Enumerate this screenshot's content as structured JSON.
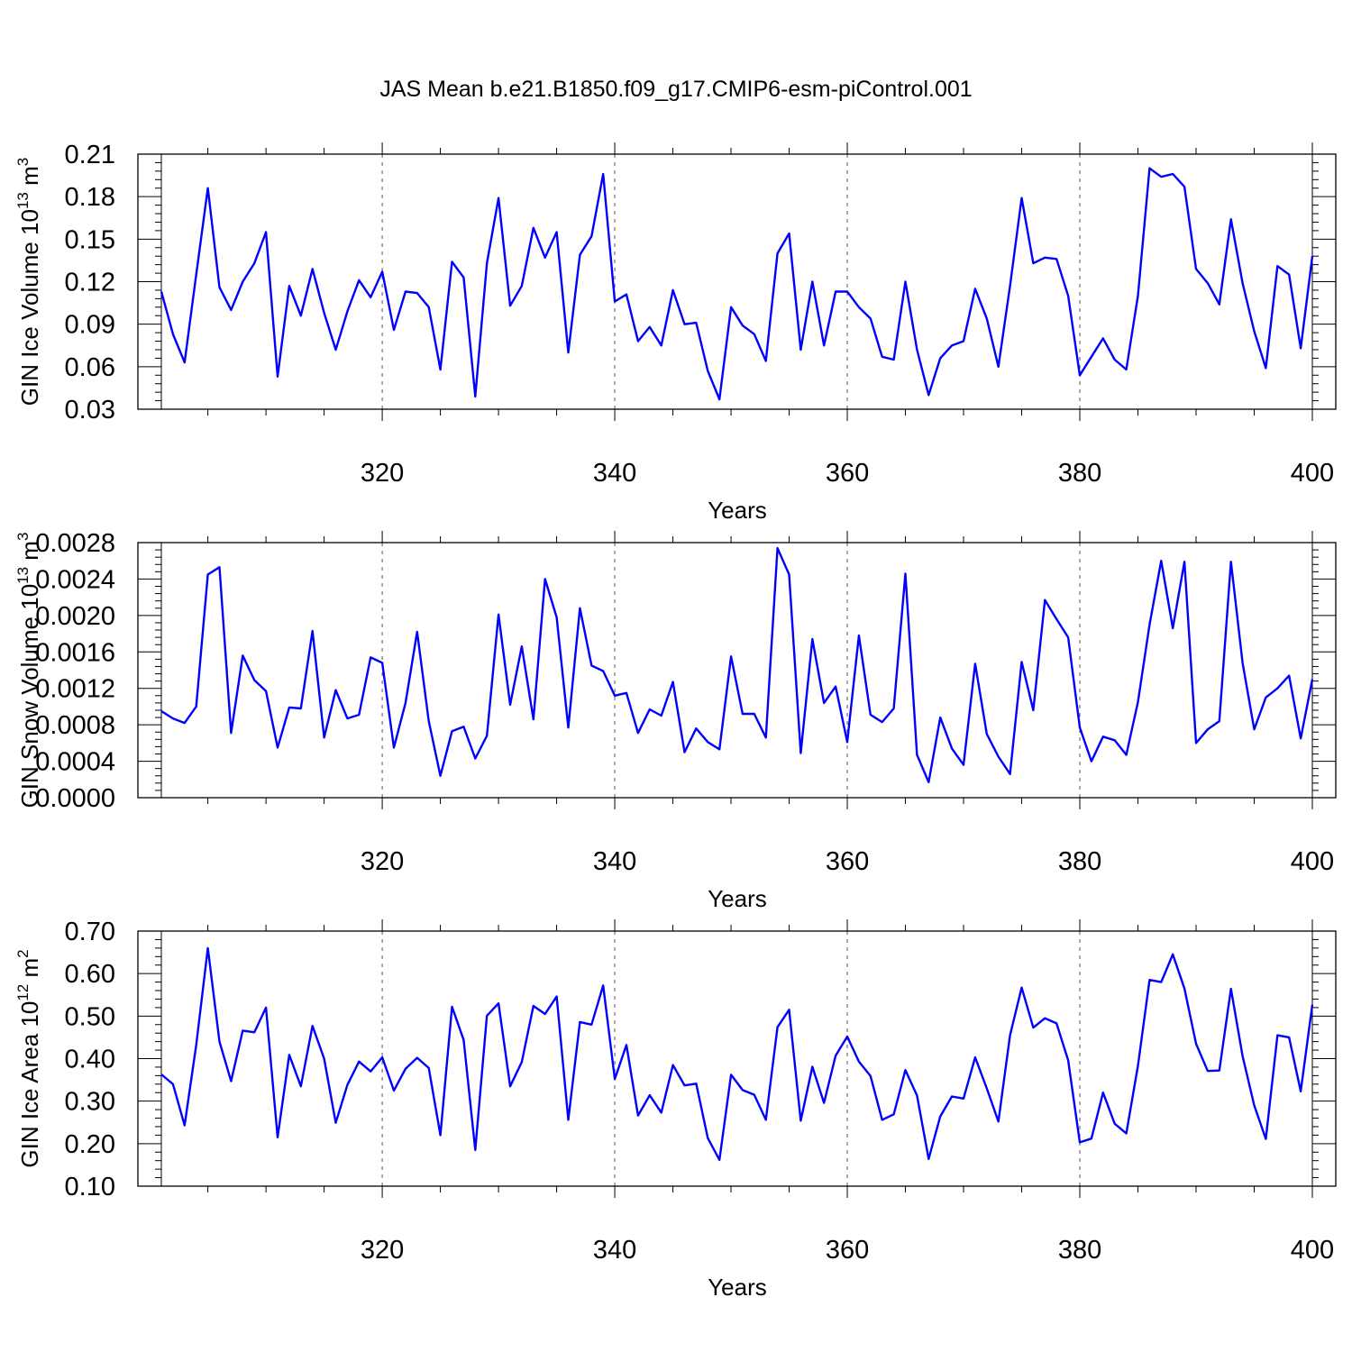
{
  "title": "JAS Mean b.e21.B1850.f09_g17.CMIP6-esm-piControl.001",
  "line_color": "#0000ff",
  "chart_data": [
    {
      "type": "line",
      "ylabel_parts": [
        "GIN Ice Volume 10",
        "13",
        " m",
        "3"
      ],
      "xlabel": "Years",
      "xlim": [
        301,
        400
      ],
      "ylim": [
        0.03,
        0.21
      ],
      "xticks": [
        320,
        340,
        360,
        380,
        400
      ],
      "yticks": [
        "0.03",
        "0.06",
        "0.09",
        "0.12",
        "0.15",
        "0.18",
        "0.21"
      ],
      "x_start": 301,
      "values": [
        0.113,
        0.083,
        0.063,
        0.125,
        0.186,
        0.116,
        0.1,
        0.12,
        0.133,
        0.155,
        0.053,
        0.117,
        0.096,
        0.129,
        0.098,
        0.072,
        0.099,
        0.121,
        0.109,
        0.127,
        0.086,
        0.113,
        0.112,
        0.102,
        0.058,
        0.134,
        0.123,
        0.039,
        0.133,
        0.179,
        0.103,
        0.117,
        0.158,
        0.137,
        0.155,
        0.07,
        0.139,
        0.152,
        0.196,
        0.106,
        0.111,
        0.078,
        0.088,
        0.075,
        0.114,
        0.09,
        0.091,
        0.057,
        0.037,
        0.102,
        0.089,
        0.083,
        0.064,
        0.14,
        0.154,
        0.072,
        0.12,
        0.075,
        0.113,
        0.113,
        0.102,
        0.094,
        0.067,
        0.065,
        0.12,
        0.072,
        0.04,
        0.066,
        0.075,
        0.078,
        0.115,
        0.094,
        0.06,
        0.117,
        0.179,
        0.133,
        0.137,
        0.136,
        0.11,
        0.054,
        0.067,
        0.08,
        0.065,
        0.058,
        0.11,
        0.2,
        0.194,
        0.196,
        0.187,
        0.129,
        0.119,
        0.104,
        0.164,
        0.119,
        0.085,
        0.059,
        0.131,
        0.125,
        0.073,
        0.138
      ]
    },
    {
      "type": "line",
      "ylabel_parts": [
        "GIN Snow Volume 10",
        "13",
        " m",
        "3"
      ],
      "xlabel": "Years",
      "xlim": [
        301,
        400
      ],
      "ylim": [
        0.0,
        0.0028
      ],
      "xticks": [
        320,
        340,
        360,
        380,
        400
      ],
      "yticks": [
        "0.0000",
        "0.0004",
        "0.0008",
        "0.0012",
        "0.0016",
        "0.0020",
        "0.0024",
        "0.0028"
      ],
      "x_start": 301,
      "values": [
        0.00095,
        0.00087,
        0.00082,
        0.001,
        0.00245,
        0.00253,
        0.00071,
        0.00156,
        0.00129,
        0.00117,
        0.00055,
        0.00099,
        0.00098,
        0.00183,
        0.00066,
        0.00118,
        0.00087,
        0.00091,
        0.00154,
        0.00148,
        0.00055,
        0.00104,
        0.00182,
        0.00084,
        0.00024,
        0.00073,
        0.00078,
        0.00043,
        0.00068,
        0.00201,
        0.00102,
        0.00166,
        0.00086,
        0.0024,
        0.00198,
        0.00077,
        0.00208,
        0.00145,
        0.00139,
        0.00112,
        0.00115,
        0.00071,
        0.00097,
        0.0009,
        0.00127,
        0.0005,
        0.00076,
        0.00061,
        0.00053,
        0.00155,
        0.00092,
        0.00092,
        0.00066,
        0.00274,
        0.00245,
        0.00049,
        0.00174,
        0.00104,
        0.00122,
        0.00061,
        0.00178,
        0.00091,
        0.00083,
        0.00098,
        0.00246,
        0.00047,
        0.00017,
        0.00088,
        0.00054,
        0.00036,
        0.00147,
        0.0007,
        0.00045,
        0.00026,
        0.00149,
        0.00096,
        0.00217,
        0.00196,
        0.00176,
        0.00077,
        0.0004,
        0.00067,
        0.00063,
        0.00047,
        0.00105,
        0.0019,
        0.0026,
        0.00186,
        0.00259,
        0.0006,
        0.00075,
        0.00084,
        0.00259,
        0.00148,
        0.00075,
        0.0011,
        0.0012,
        0.00134,
        0.00065,
        0.0013
      ]
    },
    {
      "type": "line",
      "ylabel_parts": [
        "GIN Ice Area 10",
        "12",
        " m",
        "2"
      ],
      "xlabel": "Years",
      "xlim": [
        301,
        400
      ],
      "ylim": [
        0.1,
        0.7
      ],
      "xticks": [
        320,
        340,
        360,
        380,
        400
      ],
      "yticks": [
        "0.10",
        "0.20",
        "0.30",
        "0.40",
        "0.50",
        "0.60",
        "0.70"
      ],
      "x_start": 301,
      "values": [
        0.363,
        0.34,
        0.243,
        0.432,
        0.66,
        0.44,
        0.347,
        0.466,
        0.462,
        0.52,
        0.215,
        0.409,
        0.335,
        0.477,
        0.4,
        0.249,
        0.338,
        0.393,
        0.37,
        0.403,
        0.325,
        0.376,
        0.402,
        0.378,
        0.22,
        0.522,
        0.444,
        0.185,
        0.501,
        0.53,
        0.335,
        0.392,
        0.524,
        0.505,
        0.546,
        0.256,
        0.486,
        0.48,
        0.572,
        0.352,
        0.432,
        0.266,
        0.314,
        0.273,
        0.385,
        0.337,
        0.341,
        0.213,
        0.162,
        0.362,
        0.326,
        0.315,
        0.256,
        0.474,
        0.515,
        0.254,
        0.381,
        0.296,
        0.407,
        0.452,
        0.393,
        0.359,
        0.256,
        0.269,
        0.373,
        0.313,
        0.164,
        0.264,
        0.311,
        0.306,
        0.403,
        0.33,
        0.252,
        0.455,
        0.567,
        0.473,
        0.495,
        0.483,
        0.396,
        0.203,
        0.212,
        0.32,
        0.247,
        0.224,
        0.383,
        0.585,
        0.58,
        0.645,
        0.565,
        0.435,
        0.371,
        0.372,
        0.564,
        0.406,
        0.29,
        0.211,
        0.455,
        0.45,
        0.323,
        0.527
      ]
    }
  ]
}
